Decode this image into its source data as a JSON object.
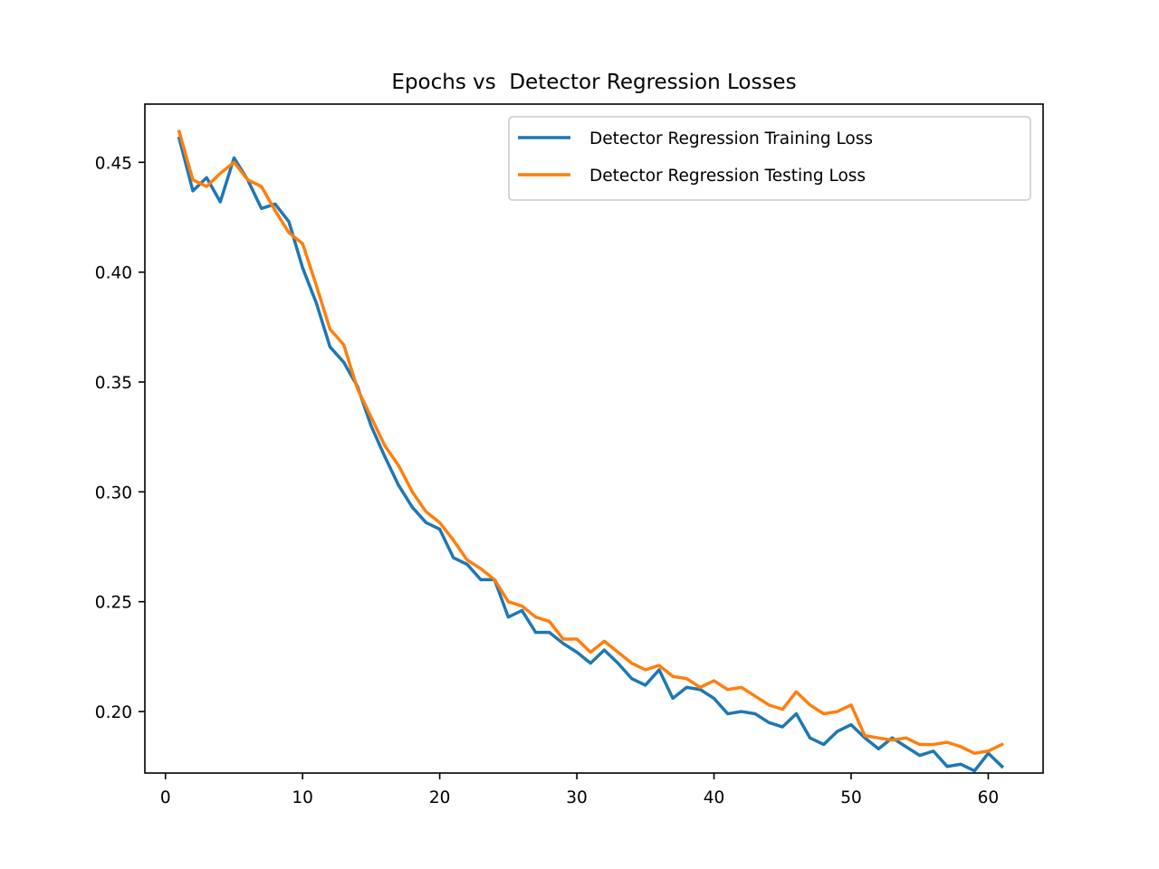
{
  "chart_data": {
    "type": "line",
    "title": "Epochs vs  Detector Regression Losses",
    "xlabel": "",
    "ylabel": "",
    "xlim": [
      -1.5,
      64
    ],
    "ylim": [
      0.172,
      0.4765
    ],
    "xticks": [
      0,
      10,
      20,
      30,
      40,
      50,
      60
    ],
    "yticks": [
      0.2,
      0.25,
      0.3,
      0.35,
      0.4,
      0.45
    ],
    "xtick_labels": [
      "0",
      "10",
      "20",
      "30",
      "40",
      "50",
      "60"
    ],
    "ytick_labels": [
      "0.20",
      "0.25",
      "0.30",
      "0.35",
      "0.40",
      "0.45"
    ],
    "grid": false,
    "legend_position": "top-right",
    "x": [
      1,
      2,
      3,
      4,
      5,
      6,
      7,
      8,
      9,
      10,
      11,
      12,
      13,
      14,
      15,
      16,
      17,
      18,
      19,
      20,
      21,
      22,
      23,
      24,
      25,
      26,
      27,
      28,
      29,
      30,
      31,
      32,
      33,
      34,
      35,
      36,
      37,
      38,
      39,
      40,
      41,
      42,
      43,
      44,
      45,
      46,
      47,
      48,
      49,
      50,
      51,
      52,
      53,
      54,
      55,
      56,
      57,
      58,
      59,
      60,
      61
    ],
    "series": [
      {
        "name": "Detector Regression Training Loss",
        "color": "#1f77b4",
        "values": [
          0.461,
          0.437,
          0.443,
          0.432,
          0.452,
          0.442,
          0.429,
          0.431,
          0.423,
          0.402,
          0.386,
          0.366,
          0.359,
          0.348,
          0.33,
          0.316,
          0.303,
          0.293,
          0.286,
          0.283,
          0.27,
          0.267,
          0.26,
          0.26,
          0.243,
          0.246,
          0.236,
          0.236,
          0.231,
          0.227,
          0.222,
          0.228,
          0.222,
          0.215,
          0.212,
          0.219,
          0.206,
          0.211,
          0.21,
          0.206,
          0.199,
          0.2,
          0.199,
          0.195,
          0.193,
          0.199,
          0.188,
          0.185,
          0.191,
          0.194,
          0.188,
          0.183,
          0.188,
          0.184,
          0.18,
          0.182,
          0.175,
          0.176,
          0.173,
          0.181,
          0.175
        ]
      },
      {
        "name": "Detector Regression Testing Loss",
        "color": "#ff7f0e",
        "values": [
          0.464,
          0.442,
          0.439,
          0.445,
          0.45,
          0.442,
          0.439,
          0.428,
          0.418,
          0.413,
          0.394,
          0.374,
          0.367,
          0.347,
          0.334,
          0.321,
          0.312,
          0.3,
          0.291,
          0.286,
          0.278,
          0.269,
          0.265,
          0.26,
          0.25,
          0.248,
          0.243,
          0.241,
          0.233,
          0.233,
          0.227,
          0.232,
          0.227,
          0.222,
          0.219,
          0.221,
          0.216,
          0.215,
          0.211,
          0.214,
          0.21,
          0.211,
          0.207,
          0.203,
          0.201,
          0.209,
          0.203,
          0.199,
          0.2,
          0.203,
          0.189,
          0.188,
          0.187,
          0.188,
          0.185,
          0.185,
          0.186,
          0.184,
          0.181,
          0.182,
          0.185
        ]
      }
    ]
  }
}
